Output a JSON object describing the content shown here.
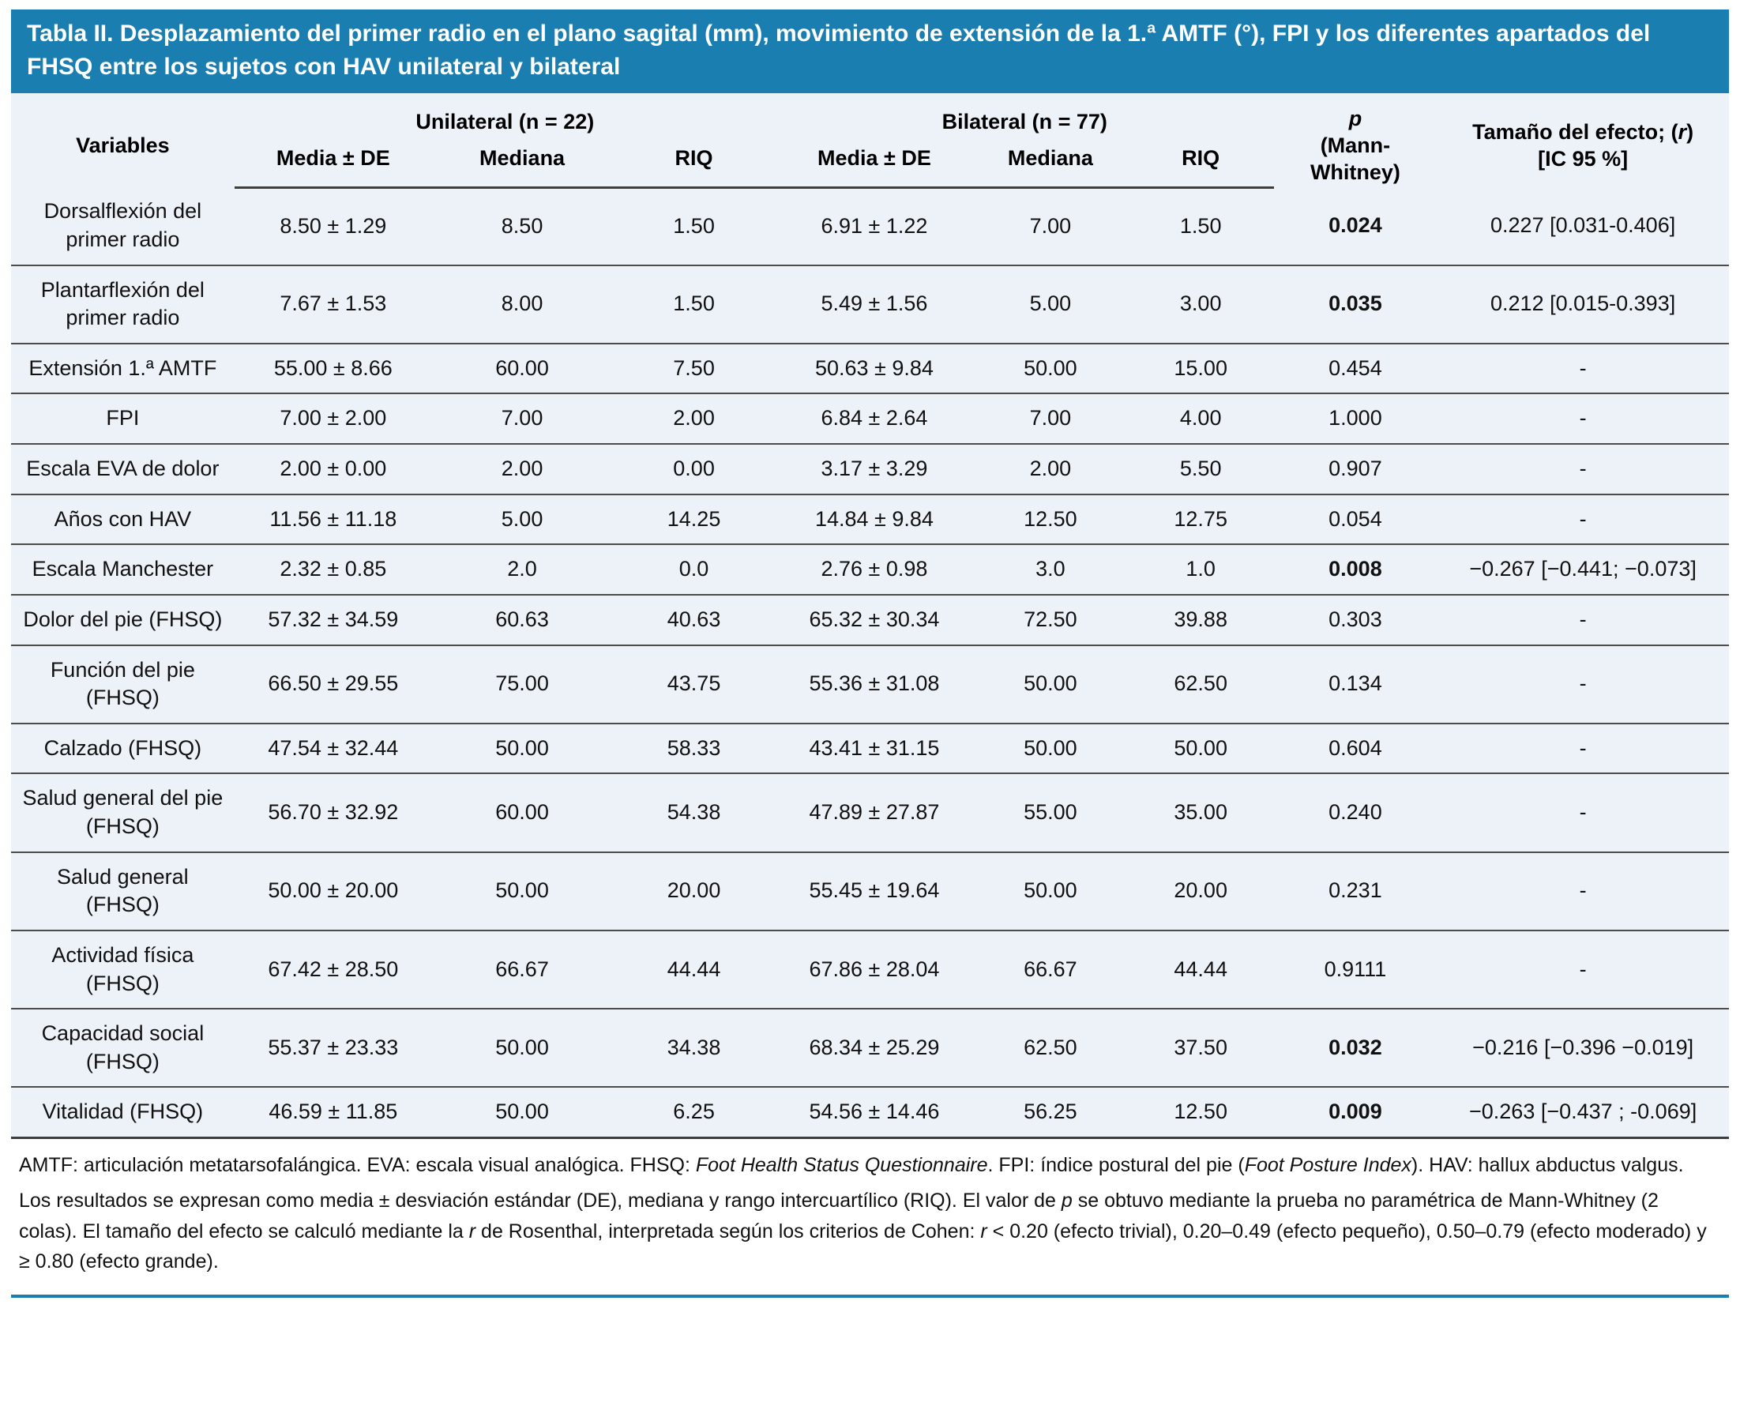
{
  "colors": {
    "title_bar_bg": "#1b7eb0",
    "title_text": "#ffffff",
    "table_bg": "#edf1f8",
    "rule_dark": "#3d3d3d",
    "bottom_rule": "#1b7eb0"
  },
  "title": "Tabla II. Desplazamiento del primer radio en el plano sagital (mm), movimiento de extensión de la 1.ª AMTF (°), FPI y los diferentes apartados del FHSQ entre los sujetos con HAV unilateral y bilateral",
  "table": {
    "header": {
      "variables": "Variables",
      "unilateral": "Unilateral (n = 22)",
      "bilateral": "Bilateral (n = 77)",
      "p_symbol": "p",
      "p_test_line1": "(Mann-",
      "p_test_line2": "Whitney)",
      "effect_prefix": "Tamaño del efecto; (",
      "effect_r": "r",
      "effect_suffix": ")",
      "effect_ci": "[IC 95 %]",
      "sub": [
        "Media ± DE",
        "Mediana",
        "RIQ",
        "Media ± DE",
        "Mediana",
        "RIQ"
      ]
    },
    "rows": [
      {
        "variable": "Dorsalflexión del primer radio",
        "uni": [
          "8.50 ± 1.29",
          "8.50",
          "1.50"
        ],
        "bil": [
          "6.91 ± 1.22",
          "7.00",
          "1.50"
        ],
        "p": "0.024",
        "p_bold": true,
        "effect": "0.227 [0.031-0.406]"
      },
      {
        "variable": "Plantarflexión del primer radio",
        "uni": [
          "7.67 ± 1.53",
          "8.00",
          "1.50"
        ],
        "bil": [
          "5.49 ± 1.56",
          "5.00",
          "3.00"
        ],
        "p": "0.035",
        "p_bold": true,
        "effect": "0.212 [0.015-0.393]"
      },
      {
        "variable": "Extensión 1.ª AMTF",
        "uni": [
          "55.00 ± 8.66",
          "60.00",
          "7.50"
        ],
        "bil": [
          "50.63 ± 9.84",
          "50.00",
          "15.00"
        ],
        "p": "0.454",
        "p_bold": false,
        "effect": "-"
      },
      {
        "variable": "FPI",
        "uni": [
          "7.00 ± 2.00",
          "7.00",
          "2.00"
        ],
        "bil": [
          "6.84 ± 2.64",
          "7.00",
          "4.00"
        ],
        "p": "1.000",
        "p_bold": false,
        "effect": "-"
      },
      {
        "variable": "Escala EVA de dolor",
        "uni": [
          "2.00 ± 0.00",
          "2.00",
          "0.00"
        ],
        "bil": [
          "3.17 ± 3.29",
          "2.00",
          "5.50"
        ],
        "p": "0.907",
        "p_bold": false,
        "effect": "-"
      },
      {
        "variable": "Años con HAV",
        "uni": [
          "11.56 ± 11.18",
          "5.00",
          "14.25"
        ],
        "bil": [
          "14.84 ± 9.84",
          "12.50",
          "12.75"
        ],
        "p": "0.054",
        "p_bold": false,
        "effect": "-"
      },
      {
        "variable": "Escala Manchester",
        "uni": [
          "2.32 ± 0.85",
          "2.0",
          "0.0"
        ],
        "bil": [
          "2.76 ± 0.98",
          "3.0",
          "1.0"
        ],
        "p": "0.008",
        "p_bold": true,
        "effect": "−0.267 [−0.441; −0.073]"
      },
      {
        "variable": "Dolor del pie (FHSQ)",
        "uni": [
          "57.32 ± 34.59",
          "60.63",
          "40.63"
        ],
        "bil": [
          "65.32 ± 30.34",
          "72.50",
          "39.88"
        ],
        "p": "0.303",
        "p_bold": false,
        "effect": "-"
      },
      {
        "variable": "Función del pie (FHSQ)",
        "uni": [
          "66.50 ± 29.55",
          "75.00",
          "43.75"
        ],
        "bil": [
          "55.36 ± 31.08",
          "50.00",
          "62.50"
        ],
        "p": "0.134",
        "p_bold": false,
        "effect": "-"
      },
      {
        "variable": "Calzado (FHSQ)",
        "uni": [
          "47.54 ± 32.44",
          "50.00",
          "58.33"
        ],
        "bil": [
          "43.41 ± 31.15",
          "50.00",
          "50.00"
        ],
        "p": "0.604",
        "p_bold": false,
        "effect": "-"
      },
      {
        "variable": "Salud general del pie (FHSQ)",
        "uni": [
          "56.70 ± 32.92",
          "60.00",
          "54.38"
        ],
        "bil": [
          "47.89 ± 27.87",
          "55.00",
          "35.00"
        ],
        "p": "0.240",
        "p_bold": false,
        "effect": "-"
      },
      {
        "variable": "Salud general (FHSQ)",
        "uni": [
          "50.00 ± 20.00",
          "50.00",
          "20.00"
        ],
        "bil": [
          "55.45 ± 19.64",
          "50.00",
          "20.00"
        ],
        "p": "0.231",
        "p_bold": false,
        "effect": "-"
      },
      {
        "variable": "Actividad física (FHSQ)",
        "uni": [
          "67.42 ± 28.50",
          "66.67",
          "44.44"
        ],
        "bil": [
          "67.86 ± 28.04",
          "66.67",
          "44.44"
        ],
        "p": "0.9111",
        "p_bold": false,
        "effect": "-"
      },
      {
        "variable": "Capacidad social (FHSQ)",
        "uni": [
          "55.37 ± 23.33",
          "50.00",
          "34.38"
        ],
        "bil": [
          "68.34 ± 25.29",
          "62.50",
          "37.50"
        ],
        "p": "0.032",
        "p_bold": true,
        "effect": "−0.216 [−0.396 −0.019]"
      },
      {
        "variable": "Vitalidad (FHSQ)",
        "uni": [
          "46.59 ± 11.85",
          "50.00",
          "6.25"
        ],
        "bil": [
          "54.56 ± 14.46",
          "56.25",
          "12.50"
        ],
        "p": "0.009",
        "p_bold": true,
        "effect": "−0.263 [−0.437 ; -0.069]"
      }
    ]
  },
  "footnotes": [
    [
      {
        "t": "AMTF: articulación metatarsofalángica. EVA: escala visual analógica. FHSQ: "
      },
      {
        "t": "Foot Health Status Questionnaire",
        "i": true
      },
      {
        "t": ". FPI: índice postural del pie ("
      },
      {
        "t": "Foot Posture Index",
        "i": true
      },
      {
        "t": "). HAV: hallux abductus valgus."
      }
    ],
    [
      {
        "t": "Los resultados se expresan como media ± desviación estándar (DE), mediana y rango intercuartílico (RIQ). El valor de "
      },
      {
        "t": "p",
        "i": true
      },
      {
        "t": " se obtuvo mediante la prueba no paramétrica de Mann-Whitney (2 colas). El tamaño del efecto se calculó mediante la "
      },
      {
        "t": "r",
        "i": true
      },
      {
        "t": " de Rosenthal, interpretada según los criterios de Cohen: "
      },
      {
        "t": "r",
        "i": true
      },
      {
        "t": " < 0.20 (efecto trivial), 0.20–0.49 (efecto pequeño), 0.50–0.79 (efecto moderado) y ≥ 0.80 (efecto grande)."
      }
    ]
  ]
}
